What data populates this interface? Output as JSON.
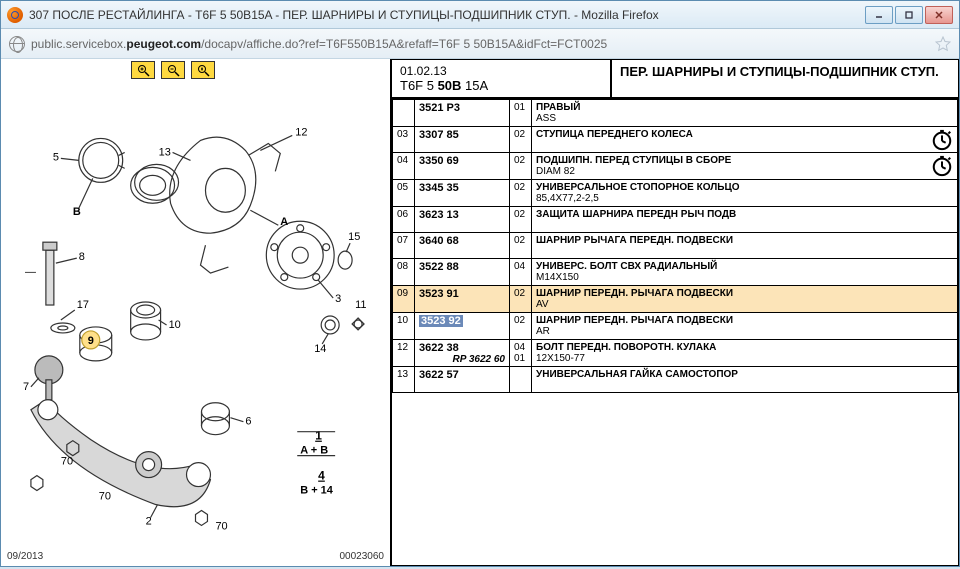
{
  "window": {
    "title": "307 ПОСЛЕ РЕСТАЙЛИНГА - T6F 5 50B15A - ПЕР. ШАРНИРЫ И СТУПИЦЫ-ПОДШИПНИК СТУП. - Mozilla Firefox",
    "url_prefix": "public.servicebox.",
    "url_bold": "peugeot.com",
    "url_suffix": "/docapv/affiche.do?ref=T6F550B15A&refaff=T6F 5 50B15A&idFct=FCT0025"
  },
  "header": {
    "date": "01.02.13",
    "code_pre": "T6F 5 ",
    "code_bold": "50B",
    "code_post": " 15A",
    "title": "ПЕР. ШАРНИРЫ И СТУПИЦЫ-ПОДШИПНИК СТУП."
  },
  "diagram": {
    "date": "09/2013",
    "serial": "00023060",
    "labels": [
      "5",
      "B",
      "8",
      "17",
      "9",
      "7",
      "70",
      "13",
      "10",
      "2",
      "70",
      "70",
      "6",
      "1",
      "A + B",
      "4",
      "B + 14",
      "A",
      "14",
      "15",
      "3",
      "12",
      "11"
    ]
  },
  "rows": [
    {
      "idx": "",
      "ref": "3521 P3",
      "qty": "01",
      "title": "ПРАВЫЙ",
      "sub": "ASS",
      "clock": false
    },
    {
      "idx": "03",
      "ref": "3307 85",
      "qty": "02",
      "title": "СТУПИЦА ПЕРЕДНЕГО КОЛЕСА",
      "sub": "",
      "clock": true
    },
    {
      "idx": "04",
      "ref": "3350 69",
      "qty": "02",
      "title": "ПОДШИПН. ПЕРЕД СТУПИЦЫ В СБОРЕ",
      "sub": "DIAM 82",
      "clock": true
    },
    {
      "idx": "05",
      "ref": "3345 35",
      "qty": "02",
      "title": "УНИВЕРСАЛЬНОЕ СТОПОРНОЕ КОЛЬЦО",
      "sub": "85,4X77,2-2,5",
      "clock": false
    },
    {
      "idx": "06",
      "ref": "3623 13",
      "qty": "02",
      "title": "ЗАЩИТА ШАРНИРА ПЕРЕДН РЫЧ ПОДВ",
      "sub": "",
      "clock": false
    },
    {
      "idx": "07",
      "ref": "3640 68",
      "qty": "02",
      "title": "ШАРНИР РЫЧАГА ПЕРЕДН. ПОДВЕСКИ",
      "sub": "",
      "clock": false
    },
    {
      "idx": "08",
      "ref": "3522 88",
      "qty": "04",
      "title": "УНИВЕРС. БОЛТ СВХ РАДИАЛЬНЫЙ",
      "sub": "M14X150",
      "clock": false
    },
    {
      "idx": "09",
      "ref": "3523 91",
      "qty": "02",
      "title": "ШАРНИР ПЕРЕДН. РЫЧАГА ПОДВЕСКИ",
      "sub": "AV",
      "clock": false,
      "hl": true
    },
    {
      "idx": "10",
      "ref": "3523 92",
      "qty": "02",
      "title": "ШАРНИР ПЕРЕДН. РЫЧАГА ПОДВЕСКИ",
      "sub": "AR",
      "clock": false,
      "sel": true
    },
    {
      "idx": "12",
      "ref": "3622 38",
      "qty": "04",
      "title": "БОЛТ ПЕРЕДН. ПОВОРОТН. КУЛАКА",
      "sub": "12X150-77",
      "clock": false,
      "rp": "RP 3622 60",
      "rpqty": "01"
    },
    {
      "idx": "13",
      "ref": "3622 57",
      "qty": "",
      "title": "УНИВЕРСАЛЬНАЯ ГАЙКА САМОСТОПОР",
      "sub": "",
      "clock": false
    }
  ]
}
